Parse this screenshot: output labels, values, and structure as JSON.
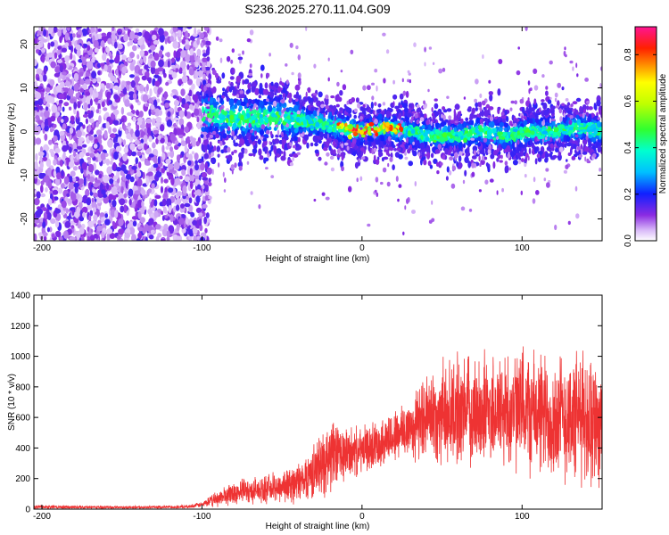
{
  "title": "S236.2025.270.11.04.G09",
  "chart_data": [
    {
      "type": "heatmap",
      "title": "S236.2025.270.11.04.G09",
      "xlabel": "Height of straight line (km)",
      "ylabel": "Frequency (Hz)",
      "xlim": [
        -205,
        150
      ],
      "ylim": [
        -25,
        24
      ],
      "xticks": [
        -200,
        -100,
        0,
        100
      ],
      "xtick_labels": [
        "-200",
        "-100",
        "0",
        "100"
      ],
      "yticks": [
        -20,
        -10,
        0,
        10,
        20
      ],
      "ytick_labels": [
        "-20",
        "-10",
        "0",
        "10",
        "20"
      ],
      "colorbar": {
        "label": "Normalized spectral amplitude",
        "range": [
          0.0,
          0.92
        ],
        "ticks": [
          0.0,
          0.2,
          0.4,
          0.6,
          0.8
        ],
        "tick_labels": [
          "0.0",
          "0.2",
          "0.4",
          "0.6",
          "0.8"
        ]
      },
      "ridge": {
        "x": [
          -95,
          -80,
          -60,
          -45,
          -30,
          -15,
          0,
          15,
          30,
          45,
          60,
          75,
          90,
          105,
          120,
          135,
          150
        ],
        "y": [
          4,
          3,
          3,
          3,
          2,
          1,
          0,
          1,
          0,
          -1,
          -1,
          0,
          -1,
          0,
          0,
          1,
          0
        ]
      }
    },
    {
      "type": "line",
      "xlabel": "Height of straight line (km)",
      "ylabel": "SNR (10 * v/v)",
      "xlim": [
        -205,
        150
      ],
      "ylim": [
        0,
        1400
      ],
      "xticks": [
        -200,
        -100,
        0,
        100
      ],
      "xtick_labels": [
        "-200",
        "-100",
        "0",
        "100"
      ],
      "yticks": [
        0,
        200,
        400,
        600,
        800,
        1000,
        1200,
        1400
      ],
      "ytick_labels": [
        "0",
        "200",
        "400",
        "600",
        "800",
        "1000",
        "1200",
        "1400"
      ],
      "series": [
        {
          "name": "SNR",
          "color": "#ee3333",
          "envelope_x": [
            -205,
            -150,
            -110,
            -100,
            -90,
            -80,
            -60,
            -40,
            -30,
            -20,
            -10,
            0,
            10,
            20,
            30,
            40,
            50,
            60,
            80,
            100,
            120,
            140,
            150
          ],
          "envelope_mean": [
            15,
            12,
            15,
            30,
            70,
            110,
            130,
            170,
            250,
            350,
            360,
            380,
            430,
            480,
            530,
            600,
            620,
            640,
            650,
            640,
            600,
            600,
            580
          ],
          "envelope_spread": [
            15,
            10,
            12,
            20,
            60,
            90,
            100,
            150,
            200,
            280,
            200,
            170,
            180,
            200,
            250,
            300,
            380,
            400,
            420,
            460,
            480,
            500,
            480
          ]
        }
      ]
    }
  ]
}
